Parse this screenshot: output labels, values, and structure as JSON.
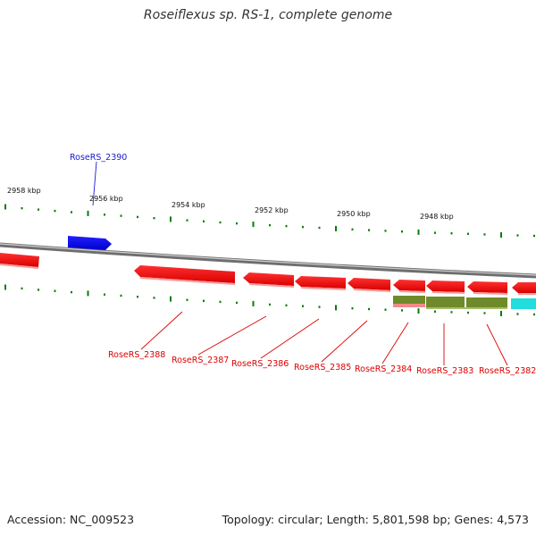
{
  "title": "Roseiflexus sp. RS-1, complete genome",
  "footer": {
    "accession": "Accession: NC_009523",
    "summary": "Topology: circular; Length: 5,801,598 bp; Genes: 4,573"
  },
  "colors": {
    "forward_gene": "#0000ee",
    "reverse_gene": "#ff0000",
    "label_forward": "#1a1ad0",
    "label_reverse": "#dd0000",
    "tick": "#0a7d0a",
    "backbone": "#8c8c8c",
    "feature_olive": "#6f8a2a",
    "feature_cyan": "#22dddd",
    "feature_pink": "#f08a8a"
  },
  "chart_data": {
    "type": "genome-map",
    "scale_unit": "kbp",
    "scale_labels": [
      {
        "position_kbp": 2958,
        "label": "2958 kbp"
      },
      {
        "position_kbp": 2956,
        "label": "2956 kbp"
      },
      {
        "position_kbp": 2954,
        "label": "2954 kbp"
      },
      {
        "position_kbp": 2952,
        "label": "2952 kbp"
      },
      {
        "position_kbp": 2950,
        "label": "2950 kbp"
      },
      {
        "position_kbp": 2948,
        "label": "2948 kbp"
      }
    ],
    "genes": [
      {
        "locus": "RoseRS_2390",
        "strand": "+",
        "labeled": true
      },
      {
        "locus": "RoseRS_2388",
        "strand": "-",
        "labeled": true
      },
      {
        "locus": "RoseRS_2387",
        "strand": "-",
        "labeled": true
      },
      {
        "locus": "RoseRS_2386",
        "strand": "-",
        "labeled": true
      },
      {
        "locus": "RoseRS_2385",
        "strand": "-",
        "labeled": true
      },
      {
        "locus": "RoseRS_2384",
        "strand": "-",
        "labeled": true
      },
      {
        "locus": "RoseRS_2383",
        "strand": "-",
        "labeled": true
      },
      {
        "locus": "RoseRS_2382",
        "strand": "-",
        "labeled": true
      }
    ]
  }
}
